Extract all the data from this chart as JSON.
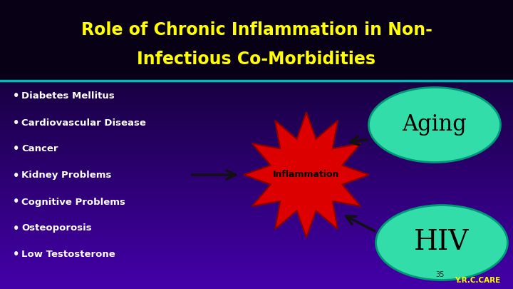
{
  "title_line1": "Role of Chronic Inflammation in Non-",
  "title_line2": "Infectious Co-Morbidities",
  "title_color": "#FFFF00",
  "title_fontsize": 17,
  "title_area_color": "#080018",
  "separator_color": "#00BBBB",
  "bullet_items": [
    "Diabetes Mellitus",
    "Cardiovascular Disease",
    "Cancer",
    "Kidney Problems",
    "Cognitive Problems",
    "Osteoporosis",
    "Low Testosterone"
  ],
  "bullet_color": "#FFFFFF",
  "bullet_fontsize": 9.5,
  "inflammation_color": "#DD0000",
  "inflammation_text": "Inflammation",
  "inflammation_text_color": "#000000",
  "aging_ellipse_color": "#33DDAA",
  "aging_text": "Aging",
  "hiv_ellipse_color": "#33DDAA",
  "hiv_text": "HIV",
  "circle_text_color": "#000000",
  "page_number": "35",
  "watermark": "Y.R.C.CARE",
  "watermark_color": "#FFFF00",
  "arrow_color": "#111111"
}
